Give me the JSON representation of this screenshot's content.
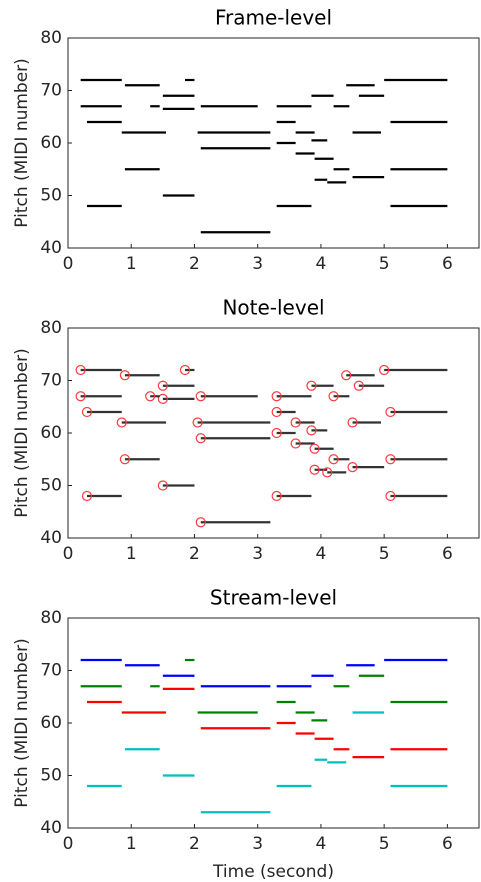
{
  "chart_data": [
    {
      "type": "segments",
      "title": "Frame-level",
      "ylabel": "Pitch (MIDI number)",
      "xlim": [
        0,
        6.5
      ],
      "ylim": [
        40,
        80
      ],
      "xticks": [
        0,
        1,
        2,
        3,
        4,
        5,
        6
      ],
      "yticks": [
        40,
        50,
        60,
        70,
        80
      ],
      "onset_markers": false,
      "series": [
        {
          "color": "#000000",
          "starts": [
            0.2,
            0.2,
            0.3,
            0.3,
            0.9,
            0.85,
            0.9,
            1.5,
            1.5,
            1.3,
            1.5,
            1.85,
            2.05,
            2.1,
            2.1,
            2.1,
            3.3,
            3.3,
            3.3,
            3.3,
            3.6,
            3.6,
            3.85,
            3.85,
            3.9,
            3.9,
            4.2,
            4.2,
            4.1,
            4.4,
            4.5,
            4.5,
            4.6,
            5.0,
            5.1,
            5.1,
            5.1
          ],
          "ends": [
            0.85,
            0.85,
            0.85,
            0.85,
            1.45,
            1.55,
            1.45,
            2.0,
            2.0,
            1.45,
            2.0,
            2.0,
            3.2,
            3.2,
            3.0,
            3.2,
            3.85,
            3.6,
            3.6,
            3.85,
            3.9,
            3.9,
            4.2,
            4.1,
            4.2,
            4.1,
            4.45,
            4.45,
            4.4,
            4.85,
            4.95,
            5.0,
            5.0,
            6.0,
            6.0,
            6.0,
            6.0
          ],
          "values": [
            72,
            67,
            64,
            48,
            71,
            62,
            55,
            69,
            66.5,
            67,
            50,
            72,
            62,
            59,
            67,
            43,
            67,
            64,
            60,
            48,
            62,
            58,
            69,
            60.5,
            57,
            53,
            67,
            55,
            52.5,
            71,
            62,
            53.5,
            69,
            72,
            64,
            55,
            48
          ]
        }
      ]
    },
    {
      "type": "segments",
      "title": "Note-level",
      "ylabel": "Pitch (MIDI number)",
      "xlim": [
        0,
        6.5
      ],
      "ylim": [
        40,
        80
      ],
      "xticks": [
        0,
        1,
        2,
        3,
        4,
        5,
        6
      ],
      "yticks": [
        40,
        50,
        60,
        70,
        80
      ],
      "onset_markers": true,
      "marker_color": "#ff3b3b",
      "series": [
        {
          "color": "#333333",
          "starts": [
            0.2,
            0.2,
            0.3,
            0.3,
            0.9,
            0.85,
            0.9,
            1.5,
            1.5,
            1.3,
            1.5,
            1.85,
            2.05,
            2.1,
            2.1,
            2.1,
            3.3,
            3.3,
            3.3,
            3.3,
            3.6,
            3.6,
            3.85,
            3.85,
            3.9,
            3.9,
            4.2,
            4.2,
            4.1,
            4.4,
            4.5,
            4.5,
            4.6,
            5.0,
            5.1,
            5.1,
            5.1
          ],
          "ends": [
            0.85,
            0.85,
            0.85,
            0.85,
            1.45,
            1.55,
            1.45,
            2.0,
            2.0,
            1.45,
            2.0,
            2.0,
            3.2,
            3.2,
            3.0,
            3.2,
            3.85,
            3.6,
            3.6,
            3.85,
            3.9,
            3.9,
            4.2,
            4.1,
            4.2,
            4.1,
            4.45,
            4.45,
            4.4,
            4.85,
            4.95,
            5.0,
            5.0,
            6.0,
            6.0,
            6.0,
            6.0
          ],
          "values": [
            72,
            67,
            64,
            48,
            71,
            62,
            55,
            69,
            66.5,
            67,
            50,
            72,
            62,
            59,
            67,
            43,
            67,
            64,
            60,
            48,
            62,
            58,
            69,
            60.5,
            57,
            53,
            67,
            55,
            52.5,
            71,
            62,
            53.5,
            69,
            72,
            64,
            55,
            48
          ]
        }
      ]
    },
    {
      "type": "segments",
      "title": "Stream-level",
      "ylabel": "Pitch (MIDI number)",
      "xlabel": "Time (second)",
      "xlim": [
        0,
        6.5
      ],
      "ylim": [
        40,
        80
      ],
      "xticks": [
        0,
        1,
        2,
        3,
        4,
        5,
        6
      ],
      "yticks": [
        40,
        50,
        60,
        70,
        80
      ],
      "onset_markers": false,
      "series": [
        {
          "color": "#0000ff",
          "starts": [
            0.2,
            0.9,
            1.5,
            2.1,
            3.3,
            3.85,
            4.4,
            5.0
          ],
          "ends": [
            0.85,
            1.45,
            2.0,
            3.2,
            3.85,
            4.2,
            4.85,
            6.0
          ],
          "values": [
            72,
            71,
            69,
            67,
            67,
            69,
            71,
            72
          ]
        },
        {
          "color": "#008000",
          "starts": [
            0.2,
            1.3,
            1.85,
            2.05,
            3.3,
            3.6,
            3.85,
            4.2,
            4.6,
            5.1
          ],
          "ends": [
            0.85,
            1.45,
            2.0,
            3.0,
            3.6,
            3.9,
            4.1,
            4.45,
            5.0,
            6.0
          ],
          "values": [
            67,
            67,
            72,
            62,
            64,
            62,
            60.5,
            67,
            69,
            64
          ]
        },
        {
          "color": "#ff0000",
          "starts": [
            0.3,
            0.85,
            1.5,
            2.1,
            3.3,
            3.6,
            3.9,
            4.2,
            4.5,
            5.1
          ],
          "ends": [
            0.85,
            1.55,
            2.0,
            3.2,
            3.6,
            3.9,
            4.2,
            4.45,
            5.0,
            6.0
          ],
          "values": [
            64,
            62,
            66.5,
            59,
            60,
            58,
            57,
            55,
            53.5,
            55
          ]
        },
        {
          "color": "#00bfbf",
          "starts": [
            0.3,
            0.9,
            1.5,
            2.1,
            3.3,
            3.9,
            4.1,
            4.5,
            5.1
          ],
          "ends": [
            0.85,
            1.45,
            2.0,
            3.2,
            3.85,
            4.1,
            4.4,
            5.0,
            6.0
          ],
          "values": [
            48,
            55,
            50,
            43,
            48,
            53,
            52.5,
            62,
            48
          ]
        }
      ]
    }
  ]
}
